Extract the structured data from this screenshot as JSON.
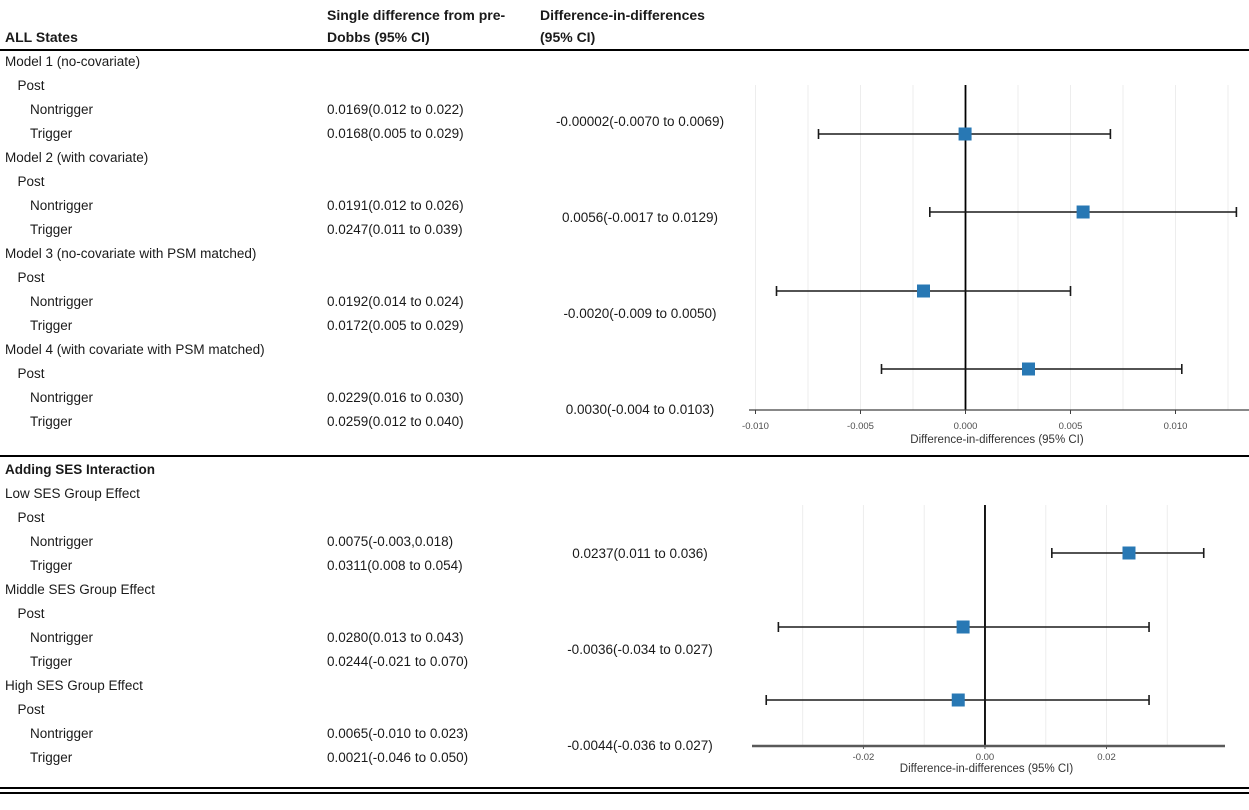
{
  "header": {
    "col1": "ALL States",
    "col2_line1": "Single difference from pre-",
    "col2_line2": "Dobbs (95% CI)",
    "col3_line1": "Difference-in-differences",
    "col3_line2": "(95% CI)"
  },
  "sections": [
    {
      "rows": [
        {
          "label": "Model 1 (no-covariate)",
          "indent": 0
        },
        {
          "label": "Post",
          "indent": 1
        },
        {
          "label": "Nontrigger",
          "indent": 2,
          "single_diff": "0.0169(0.012 to 0.022)"
        },
        {
          "label": "Trigger",
          "indent": 2,
          "single_diff": "0.0168(0.005 to 0.029)"
        },
        {
          "label": "Model 2 (with covariate)",
          "indent": 0
        },
        {
          "label": "Post",
          "indent": 1
        },
        {
          "label": "Nontrigger",
          "indent": 2,
          "single_diff": "0.0191(0.012 to 0.026)"
        },
        {
          "label": "Trigger",
          "indent": 2,
          "single_diff": "0.0247(0.011 to 0.039)"
        },
        {
          "label": "Model 3 (no-covariate with PSM matched)",
          "indent": 0
        },
        {
          "label": "Post",
          "indent": 1
        },
        {
          "label": "Nontrigger",
          "indent": 2,
          "single_diff": "0.0192(0.014 to 0.024)"
        },
        {
          "label": "Trigger",
          "indent": 2,
          "single_diff": "0.0172(0.005 to 0.029)"
        },
        {
          "label": "Model 4 (with covariate with PSM matched)",
          "indent": 0
        },
        {
          "label": "Post",
          "indent": 1
        },
        {
          "label": "Nontrigger",
          "indent": 2,
          "single_diff": "0.0229(0.016 to 0.030)"
        },
        {
          "label": "Trigger",
          "indent": 2,
          "single_diff": "0.0259(0.012 to 0.040)"
        }
      ],
      "did_values": [
        {
          "text": "-0.00002(-0.0070 to 0.0069)",
          "rows": [
            2,
            3
          ]
        },
        {
          "text": "0.0056(-0.0017 to 0.0129)",
          "rows": [
            6,
            7
          ]
        },
        {
          "text": "-0.0020(-0.009 to 0.0050)",
          "rows": [
            10,
            11
          ]
        },
        {
          "text": "0.0030(-0.004 to 0.0103)",
          "rows": [
            14,
            15
          ]
        }
      ]
    },
    {
      "rows": [
        {
          "label": "Adding SES Interaction",
          "indent": 0,
          "bold": true
        },
        {
          "label": "Low SES Group Effect",
          "indent": 0
        },
        {
          "label": "Post",
          "indent": 1
        },
        {
          "label": "Nontrigger",
          "indent": 2,
          "single_diff": "0.0075(-0.003,0.018)"
        },
        {
          "label": "Trigger",
          "indent": 2,
          "single_diff": "0.0311(0.008 to 0.054)"
        },
        {
          "label": "Middle SES Group Effect",
          "indent": 0
        },
        {
          "label": "Post",
          "indent": 1
        },
        {
          "label": "Nontrigger",
          "indent": 2,
          "single_diff": "0.0280(0.013 to 0.043)"
        },
        {
          "label": "Trigger",
          "indent": 2,
          "single_diff": "0.0244(-0.021 to 0.070)"
        },
        {
          "label": "High SES Group Effect",
          "indent": 0
        },
        {
          "label": "Post",
          "indent": 1
        },
        {
          "label": "Nontrigger",
          "indent": 2,
          "single_diff": "0.0065(-0.010 to 0.023)"
        },
        {
          "label": "Trigger",
          "indent": 2,
          "single_diff": "0.0021(-0.046 to 0.050)"
        }
      ],
      "did_values": [
        {
          "text": "0.0237(0.011 to 0.036)",
          "rows": [
            3,
            4
          ]
        },
        {
          "text": "-0.0036(-0.034 to 0.027)",
          "rows": [
            7,
            8
          ]
        },
        {
          "text": "-0.0044(-0.036 to 0.027)",
          "rows": [
            11,
            12
          ]
        }
      ]
    }
  ],
  "chart_data": [
    {
      "type": "forest",
      "title": "",
      "xlabel": "Difference-in-differences (95% CI)",
      "xlim": [
        -0.0105,
        0.0135
      ],
      "x_ticks": [
        -0.01,
        -0.005,
        0.0,
        0.005,
        0.01
      ],
      "x_tick_labels": [
        "-0.010",
        "-0.005",
        "0.000",
        "0.005",
        "0.010"
      ],
      "grid": true,
      "grid_step": 0.0025,
      "zero_line": 0,
      "legend": false,
      "rows": [
        {
          "group": "Model 1 (no-covariate)",
          "estimate": -2e-05,
          "ci_low": -0.007,
          "ci_high": 0.0069
        },
        {
          "group": "Model 2 (with covariate)",
          "estimate": 0.0056,
          "ci_low": -0.0017,
          "ci_high": 0.0129
        },
        {
          "group": "Model 3 (no-covariate with PSM matched)",
          "estimate": -0.002,
          "ci_low": -0.009,
          "ci_high": 0.005
        },
        {
          "group": "Model 4 (with covariate with PSM matched)",
          "estimate": 0.003,
          "ci_low": -0.004,
          "ci_high": 0.0103
        }
      ]
    },
    {
      "type": "forest",
      "title": "",
      "xlabel": "Difference-in-differences (95% CI)",
      "xlim": [
        -0.039,
        0.0395
      ],
      "x_ticks": [
        -0.02,
        0.0,
        0.02
      ],
      "x_tick_labels": [
        "-0.02",
        "0.00",
        "0.02"
      ],
      "grid": true,
      "grid_step": 0.01,
      "zero_line": 0,
      "legend": false,
      "rows": [
        {
          "group": "Low SES Group Effect",
          "estimate": 0.0237,
          "ci_low": 0.011,
          "ci_high": 0.036
        },
        {
          "group": "Middle SES Group Effect",
          "estimate": -0.0036,
          "ci_low": -0.034,
          "ci_high": 0.027
        },
        {
          "group": "High SES Group Effect",
          "estimate": -0.0044,
          "ci_low": -0.036,
          "ci_high": 0.027
        }
      ]
    }
  ],
  "colors": {
    "marker_blue": "#2878b4",
    "grid_line": "#ededed",
    "axis_dark": "#404040",
    "axis_gray": "#595959",
    "ci_line": "#1a1a1a",
    "tick_text": "#4d4d4d"
  }
}
